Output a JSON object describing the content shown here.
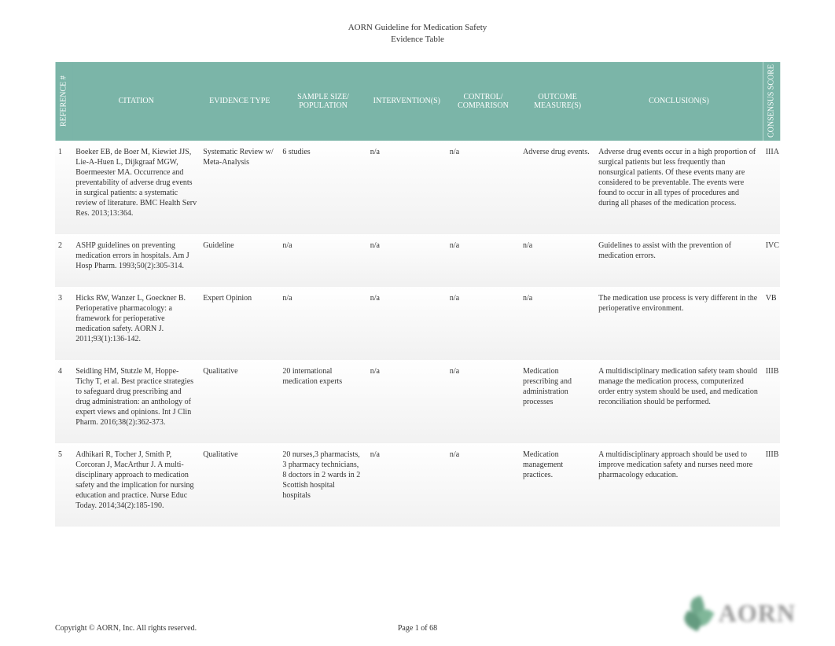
{
  "header": {
    "title": "AORN Guideline for Medication Safety",
    "subtitle": "Evidence Table"
  },
  "columns": {
    "reference": "REFERENCE #",
    "citation": "CITATION",
    "evidence_type": "EVIDENCE TYPE",
    "sample": "SAMPLE SIZE/ POPULATION",
    "intervention": "INTERVENTION(S)",
    "control": "CONTROL/ COMPARISON",
    "outcome": "OUTCOME MEASURE(S)",
    "conclusion": "CONCLUSION(S)",
    "score": "CONSENSUS SCORE"
  },
  "rows": [
    {
      "ref": "1",
      "citation": "Boeker EB, de Boer M, Kiewiet JJS, Lie-A-Huen L, Dijkgraaf MGW, Boermeester MA. Occurrence and preventability of adverse drug events in surgical patients: a systematic review of literature. BMC Health Serv Res. 2013;13:364.",
      "evidence_type": "Systematic Review w/ Meta-Analysis",
      "sample": "6 studies",
      "intervention": "n/a",
      "control": "n/a",
      "outcome": "Adverse drug events.",
      "conclusion": "Adverse drug events occur in a high proportion of surgical patients but less frequently than nonsurgical patients. Of these events many are considered to be preventable.   The events were found to occur in all types of procedures and during all phases of the medication process.",
      "score": "IIIA"
    },
    {
      "ref": "2",
      "citation": "ASHP guidelines on preventing medication errors in hospitals. Am J Hosp Pharm. 1993;50(2):305-314.",
      "evidence_type": "Guideline",
      "sample": "n/a",
      "intervention": "n/a",
      "control": "n/a",
      "outcome": "n/a",
      "conclusion": "Guidelines to assist with the prevention of medication errors.",
      "score": "IVC"
    },
    {
      "ref": "3",
      "citation": "Hicks RW, Wanzer L, Goeckner B. Perioperative pharmacology: a framework for perioperative medication safety. AORN J. 2011;93(1):136-142.",
      "evidence_type": "Expert Opinion",
      "sample": "n/a",
      "intervention": "n/a",
      "control": "n/a",
      "outcome": "n/a",
      "conclusion": "The medication use process is very different in the perioperative environment.",
      "score": "VB"
    },
    {
      "ref": "4",
      "citation": "Seidling HM, Stutzle M, Hoppe-Tichy T, et al. Best practice strategies to safeguard drug prescribing and drug administration: an anthology of expert views and opinions. Int J Clin Pharm. 2016;38(2):362-373.",
      "evidence_type": "Qualitative",
      "sample": "20 international medication experts",
      "intervention": "n/a",
      "control": "n/a",
      "outcome": "Medication prescribing and administration processes",
      "conclusion": "A multidisciplinary medication safety team should manage the medication process, computerized order entry system should be used, and medication reconciliation should be performed.",
      "score": "IIIB"
    },
    {
      "ref": "5",
      "citation": "Adhikari R, Tocher J, Smith P, Corcoran J, MacArthur J. A multi-disciplinary approach to medication safety and the implication for nursing education and practice. Nurse Educ Today. 2014;34(2):185-190.",
      "evidence_type": "Qualitative",
      "sample": "20 nurses,3 pharmacists, 3 pharmacy technicians, 8 doctors in 2 wards in 2 Scottish hospital hospitals",
      "intervention": "n/a",
      "control": "n/a",
      "outcome": "Medication management practices.",
      "conclusion": "A multidisciplinary approach should be used to improve medication safety and nurses need more pharmacology education.",
      "score": "IIIB"
    }
  ],
  "footer": {
    "copyright": "Copyright © AORN, Inc. All rights reserved.",
    "page": "Page 1 of 68",
    "logo_text": "AORN"
  },
  "styling": {
    "header_bg": "#7bb5a8",
    "header_text": "#ffffff",
    "body_text": "#333333",
    "row_shade": "#efefef",
    "font_body_size": 10,
    "font_header_size": 11
  }
}
